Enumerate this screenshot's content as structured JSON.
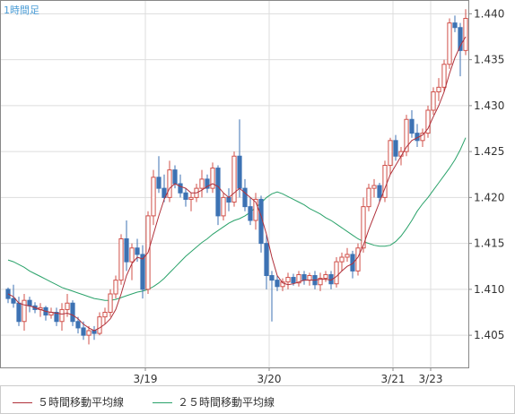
{
  "timeframe_label": "1時間足",
  "legend": {
    "ma5_label": "５時間移動平均線",
    "ma25_label": "２５時間移動平均線"
  },
  "colors": {
    "up": "#d0504a",
    "down": "#3d72b3",
    "ma5": "#b0303a",
    "ma25": "#2aa26a",
    "grid": "#dddddd",
    "axis": "#888888",
    "label": "#333333"
  },
  "chart_data": {
    "type": "candlestick",
    "x_ticks": [
      "3/19",
      "3/20",
      "3/21",
      "3/23"
    ],
    "y_ticks": [
      "1.440",
      "1.435",
      "1.430",
      "1.425",
      "1.420",
      "1.415",
      "1.410",
      "1.405"
    ],
    "ylim": [
      1.4015,
      1.4415
    ],
    "grid": true,
    "legend_position": "bottom-left",
    "candles_ohlc": [
      [
        1.41,
        1.4102,
        1.4085,
        1.409
      ],
      [
        1.409,
        1.4105,
        1.408,
        1.4085
      ],
      [
        1.4085,
        1.4092,
        1.406,
        1.4065
      ],
      [
        1.4065,
        1.4095,
        1.4055,
        1.4088
      ],
      [
        1.4088,
        1.4092,
        1.4075,
        1.4082
      ],
      [
        1.4082,
        1.4086,
        1.4074,
        1.4078
      ],
      [
        1.4078,
        1.4085,
        1.407,
        1.408
      ],
      [
        1.408,
        1.4082,
        1.4066,
        1.4072
      ],
      [
        1.4072,
        1.408,
        1.4068,
        1.4075
      ],
      [
        1.4075,
        1.408,
        1.406,
        1.4065
      ],
      [
        1.4065,
        1.4085,
        1.4055,
        1.4078
      ],
      [
        1.4078,
        1.4095,
        1.407,
        1.4085
      ],
      [
        1.4085,
        1.4088,
        1.406,
        1.4065
      ],
      [
        1.4065,
        1.407,
        1.4052,
        1.4058
      ],
      [
        1.4058,
        1.4065,
        1.4045,
        1.405
      ],
      [
        1.405,
        1.406,
        1.404,
        1.4055
      ],
      [
        1.4055,
        1.406,
        1.4045,
        1.4052
      ],
      [
        1.4052,
        1.4075,
        1.405,
        1.407
      ],
      [
        1.407,
        1.408,
        1.4062,
        1.4075
      ],
      [
        1.4075,
        1.41,
        1.407,
        1.4095
      ],
      [
        1.4095,
        1.4115,
        1.409,
        1.411
      ],
      [
        1.411,
        1.416,
        1.4105,
        1.4155
      ],
      [
        1.4155,
        1.4175,
        1.412,
        1.413
      ],
      [
        1.413,
        1.415,
        1.411,
        1.4145
      ],
      [
        1.4145,
        1.4155,
        1.413,
        1.4138
      ],
      [
        1.4138,
        1.4148,
        1.409,
        1.41
      ],
      [
        1.41,
        1.4185,
        1.4095,
        1.418
      ],
      [
        1.418,
        1.423,
        1.417,
        1.4222
      ],
      [
        1.4222,
        1.4245,
        1.4205,
        1.421
      ],
      [
        1.421,
        1.4225,
        1.4195,
        1.42
      ],
      [
        1.42,
        1.424,
        1.4195,
        1.423
      ],
      [
        1.423,
        1.4235,
        1.421,
        1.4215
      ],
      [
        1.4215,
        1.4225,
        1.42,
        1.4205
      ],
      [
        1.4205,
        1.421,
        1.419,
        1.4198
      ],
      [
        1.4198,
        1.4205,
        1.4185,
        1.42
      ],
      [
        1.42,
        1.4215,
        1.4195,
        1.421
      ],
      [
        1.421,
        1.423,
        1.42,
        1.422
      ],
      [
        1.422,
        1.4225,
        1.4205,
        1.421
      ],
      [
        1.421,
        1.4238,
        1.4205,
        1.4232
      ],
      [
        1.4232,
        1.4235,
        1.417,
        1.418
      ],
      [
        1.418,
        1.4205,
        1.4175,
        1.42
      ],
      [
        1.42,
        1.421,
        1.4185,
        1.4195
      ],
      [
        1.4195,
        1.425,
        1.419,
        1.4245
      ],
      [
        1.4245,
        1.4285,
        1.42,
        1.421
      ],
      [
        1.421,
        1.422,
        1.4185,
        1.419
      ],
      [
        1.419,
        1.42,
        1.417,
        1.4175
      ],
      [
        1.4175,
        1.4205,
        1.4165,
        1.4198
      ],
      [
        1.4198,
        1.4202,
        1.414,
        1.415
      ],
      [
        1.415,
        1.416,
        1.41,
        1.4115
      ],
      [
        1.4115,
        1.412,
        1.4065,
        1.411
      ],
      [
        1.411,
        1.4115,
        1.4098,
        1.4103
      ],
      [
        1.4103,
        1.4112,
        1.4098,
        1.4108
      ],
      [
        1.4108,
        1.4118,
        1.41,
        1.4113
      ],
      [
        1.4113,
        1.4117,
        1.4104,
        1.4107
      ],
      [
        1.4107,
        1.412,
        1.4103,
        1.4116
      ],
      [
        1.4116,
        1.412,
        1.4105,
        1.411
      ],
      [
        1.411,
        1.4118,
        1.4104,
        1.4115
      ],
      [
        1.4115,
        1.412,
        1.41,
        1.4105
      ],
      [
        1.4105,
        1.4118,
        1.4098,
        1.4112
      ],
      [
        1.4112,
        1.412,
        1.4108,
        1.4116
      ],
      [
        1.4116,
        1.412,
        1.41,
        1.4106
      ],
      [
        1.4106,
        1.4135,
        1.4102,
        1.413
      ],
      [
        1.413,
        1.414,
        1.412,
        1.4135
      ],
      [
        1.4135,
        1.4145,
        1.413,
        1.4138
      ],
      [
        1.4138,
        1.4142,
        1.4112,
        1.412
      ],
      [
        1.412,
        1.415,
        1.4115,
        1.4145
      ],
      [
        1.4145,
        1.42,
        1.414,
        1.419
      ],
      [
        1.419,
        1.4215,
        1.4185,
        1.421
      ],
      [
        1.421,
        1.422,
        1.42,
        1.4213
      ],
      [
        1.4213,
        1.4216,
        1.4195,
        1.42
      ],
      [
        1.42,
        1.424,
        1.4195,
        1.4235
      ],
      [
        1.4235,
        1.4265,
        1.4225,
        1.4262
      ],
      [
        1.4262,
        1.4268,
        1.424,
        1.4245
      ],
      [
        1.4245,
        1.4255,
        1.4235,
        1.425
      ],
      [
        1.425,
        1.429,
        1.4245,
        1.4285
      ],
      [
        1.4285,
        1.4295,
        1.4265,
        1.427
      ],
      [
        1.427,
        1.428,
        1.4255,
        1.4262
      ],
      [
        1.4262,
        1.4275,
        1.4255,
        1.427
      ],
      [
        1.427,
        1.43,
        1.4265,
        1.4295
      ],
      [
        1.4295,
        1.432,
        1.429,
        1.4315
      ],
      [
        1.4315,
        1.433,
        1.4305,
        1.432
      ],
      [
        1.432,
        1.435,
        1.4315,
        1.4345
      ],
      [
        1.4345,
        1.4395,
        1.434,
        1.439
      ],
      [
        1.439,
        1.4398,
        1.438,
        1.4385
      ],
      [
        1.4385,
        1.439,
        1.4332,
        1.436
      ],
      [
        1.436,
        1.4405,
        1.4355,
        1.4395
      ]
    ],
    "ma5_values": [
      1.4095,
      1.4092,
      1.4085,
      1.4083,
      1.4082,
      1.408,
      1.4078,
      1.4076,
      1.4075,
      1.4074,
      1.4073,
      1.4074,
      1.4072,
      1.4068,
      1.4062,
      1.4058,
      1.4055,
      1.4058,
      1.4062,
      1.4068,
      1.4078,
      1.4095,
      1.4115,
      1.4128,
      1.4135,
      1.4133,
      1.414,
      1.416,
      1.418,
      1.4198,
      1.421,
      1.4215,
      1.4212,
      1.421,
      1.4205,
      1.4205,
      1.4208,
      1.4212,
      1.4215,
      1.4212,
      1.4205,
      1.42,
      1.4205,
      1.421,
      1.4205,
      1.42,
      1.4195,
      1.418,
      1.416,
      1.4135,
      1.4115,
      1.4107,
      1.4105,
      1.4106,
      1.4108,
      1.411,
      1.411,
      1.411,
      1.4111,
      1.4111,
      1.411,
      1.4114,
      1.412,
      1.4125,
      1.4128,
      1.4135,
      1.4148,
      1.4165,
      1.418,
      1.4195,
      1.421,
      1.4225,
      1.4235,
      1.4245,
      1.4255,
      1.4262,
      1.4265,
      1.4268,
      1.4275,
      1.4288,
      1.43,
      1.4315,
      1.4335,
      1.4352,
      1.4365,
      1.4375
    ],
    "ma25_values": [
      1.4132,
      1.413,
      1.4127,
      1.4124,
      1.412,
      1.4117,
      1.4114,
      1.4111,
      1.4108,
      1.4105,
      1.4102,
      1.41,
      1.4098,
      1.4096,
      1.4094,
      1.4092,
      1.409,
      1.4089,
      1.4088,
      1.4088,
      1.4089,
      1.4091,
      1.4093,
      1.4095,
      1.4097,
      1.4098,
      1.41,
      1.4103,
      1.4107,
      1.4112,
      1.4118,
      1.4124,
      1.413,
      1.4136,
      1.4141,
      1.4146,
      1.4151,
      1.4155,
      1.416,
      1.4164,
      1.4168,
      1.4172,
      1.4175,
      1.4177,
      1.418,
      1.4184,
      1.4189,
      1.4194,
      1.42,
      1.4204,
      1.4206,
      1.4204,
      1.4201,
      1.4198,
      1.4195,
      1.4192,
      1.4188,
      1.4185,
      1.4182,
      1.4178,
      1.4175,
      1.4171,
      1.4167,
      1.4163,
      1.4159,
      1.4155,
      1.4152,
      1.415,
      1.4148,
      1.4147,
      1.4147,
      1.4148,
      1.4152,
      1.4158,
      1.4166,
      1.4175,
      1.4185,
      1.4193,
      1.42,
      1.4208,
      1.4216,
      1.4224,
      1.4232,
      1.4241,
      1.4252,
      1.4265
    ]
  }
}
